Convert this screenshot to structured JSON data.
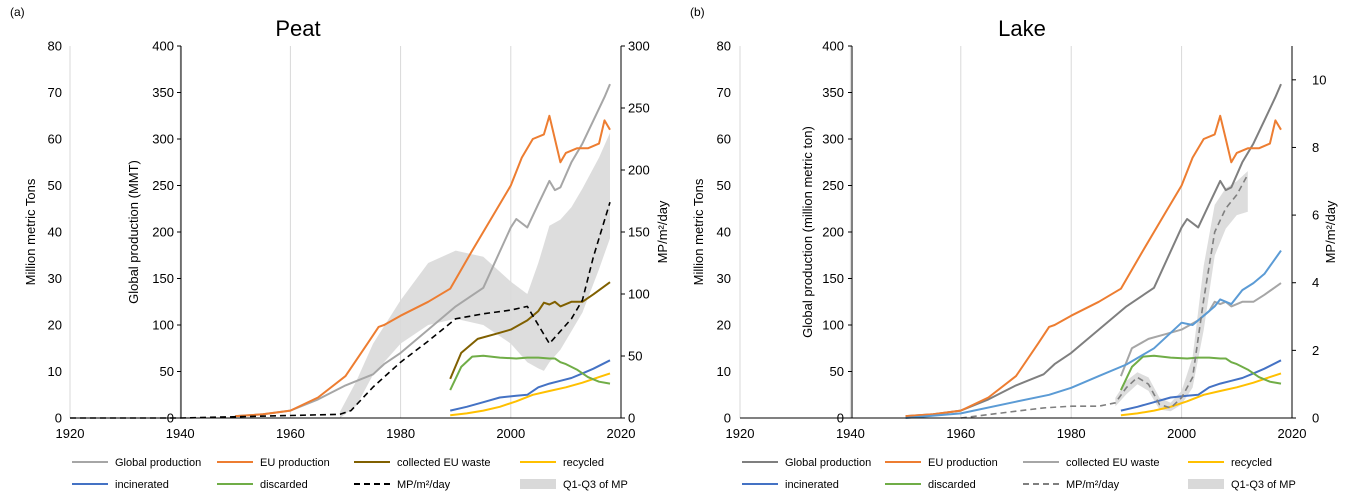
{
  "chart_data": [
    {
      "type": "line",
      "panel_label": "(a)",
      "title": "Peat",
      "xlabel": "",
      "ylabel_outer": "Million metric Tons",
      "ylabel_inner": "Global production (MMT)",
      "ylabel_right": "MP/m²/day",
      "xlim": [
        1920,
        2020
      ],
      "x_ticks": [
        "1920",
        "1940",
        "1960",
        "1980",
        "2000",
        "2020"
      ],
      "ylim_outer": [
        0,
        80
      ],
      "y_ticks_outer": [
        "0",
        "10",
        "20",
        "30",
        "40",
        "50",
        "60",
        "70",
        "80"
      ],
      "ylim_inner": [
        0,
        400
      ],
      "y_ticks_inner": [
        "0",
        "50",
        "100",
        "150",
        "200",
        "250",
        "300",
        "350",
        "400"
      ],
      "ylim_right": [
        0,
        300
      ],
      "y_ticks_right": [
        "0",
        "50",
        "100",
        "150",
        "200",
        "250",
        "300"
      ],
      "grid": "vertical",
      "legend": {
        "rows": [
          [
            "Global production",
            "EU production",
            "collected EU waste",
            "recycled"
          ],
          [
            "incinerated",
            "discarded",
            "MP/m²/day",
            "Q1-Q3 of MP"
          ]
        ]
      },
      "series": [
        {
          "name": "Global production",
          "color": "#A6A6A6",
          "axis": "inner",
          "style": "solid",
          "x": [
            1950,
            1955,
            1960,
            1965,
            1970,
            1975,
            1977,
            1980,
            1985,
            1990,
            1995,
            2000,
            2001,
            2003,
            2005,
            2007,
            2008,
            2009,
            2011,
            2013,
            2015,
            2017,
            2018
          ],
          "values": [
            2,
            4,
            8,
            20,
            35,
            47,
            58,
            70,
            95,
            120,
            140,
            205,
            214,
            205,
            230,
            255,
            245,
            248,
            275,
            295,
            320,
            345,
            359
          ]
        },
        {
          "name": "EU production",
          "color": "#ED7D31",
          "axis": "inner",
          "style": "solid",
          "x": [
            1950,
            1955,
            1960,
            1965,
            1970,
            1974,
            1976,
            1977,
            1980,
            1985,
            1989,
            1993,
            1997,
            2000,
            2002,
            2004,
            2006,
            2007,
            2008,
            2009,
            2010,
            2012,
            2014,
            2016,
            2017,
            2018
          ],
          "values": [
            2,
            4,
            8,
            22,
            45,
            80,
            98,
            100,
            110,
            125,
            139,
            180,
            220,
            250,
            280,
            300,
            305,
            325,
            300,
            275,
            285,
            290,
            290,
            295,
            320,
            310
          ]
        },
        {
          "name": "collected EU waste",
          "color": "#806000",
          "axis": "inner",
          "style": "solid",
          "x": [
            1989,
            1991,
            1994,
            1997,
            2000,
            2003,
            2005,
            2006,
            2007,
            2008,
            2009,
            2011,
            2013,
            2015,
            2018
          ],
          "values": [
            42,
            70,
            85,
            90,
            95,
            105,
            115,
            124,
            122,
            125,
            120,
            125,
            125,
            133,
            146
          ]
        },
        {
          "name": "recycled",
          "color": "#FFC000",
          "axis": "inner",
          "style": "solid",
          "x": [
            1989,
            1992,
            1995,
            1998,
            2001,
            2004,
            2007,
            2010,
            2013,
            2016,
            2018
          ],
          "values": [
            3,
            5,
            8,
            12,
            18,
            25,
            29,
            33,
            38,
            44,
            48
          ]
        },
        {
          "name": "incinerated",
          "color": "#4472C4",
          "axis": "inner",
          "style": "solid",
          "x": [
            1989,
            1992,
            1995,
            1998,
            2001,
            2003,
            2005,
            2007,
            2009,
            2011,
            2013,
            2015,
            2018
          ],
          "values": [
            8,
            12,
            17,
            22,
            24,
            25,
            33,
            37,
            40,
            43,
            48,
            53,
            62
          ]
        },
        {
          "name": "discarded",
          "color": "#70AD47",
          "axis": "inner",
          "style": "solid",
          "x": [
            1989,
            1991,
            1993,
            1995,
            1998,
            2001,
            2003,
            2005,
            2007,
            2008,
            2009,
            2010,
            2012,
            2014,
            2016,
            2018
          ],
          "values": [
            30,
            55,
            66,
            67,
            65,
            64,
            65,
            65,
            64,
            64,
            60,
            58,
            52,
            44,
            39,
            37
          ]
        },
        {
          "name": "MP/m²/day",
          "color": "#000000",
          "axis": "right",
          "style": "dashed",
          "x": [
            1920,
            1940,
            1960,
            1969,
            1971,
            1975,
            1980,
            1985,
            1990,
            1995,
            2000,
            2003,
            2005,
            2007,
            2009,
            2011,
            2013,
            2015,
            2018
          ],
          "values": [
            0,
            0,
            2,
            3,
            6,
            25,
            45,
            62,
            80,
            84,
            87,
            90,
            75,
            60,
            70,
            80,
            95,
            130,
            174
          ]
        }
      ],
      "band": {
        "name": "Q1-Q3 of MP",
        "color": "#D9D9D9",
        "axis": "right",
        "x": [
          1969,
          1972,
          1975,
          1980,
          1985,
          1990,
          1995,
          2000,
          2003,
          2005,
          2006,
          2007,
          2009,
          2011,
          2013,
          2016,
          2018
        ],
        "upper": [
          5,
          30,
          60,
          95,
          125,
          135,
          130,
          110,
          100,
          125,
          140,
          155,
          160,
          170,
          185,
          210,
          230
        ],
        "lower": [
          0,
          10,
          35,
          60,
          75,
          80,
          75,
          60,
          45,
          40,
          38,
          45,
          55,
          70,
          85,
          120,
          145
        ]
      }
    },
    {
      "type": "line",
      "panel_label": "(b)",
      "title": "Lake",
      "xlabel": "",
      "ylabel_outer": "Million metric Tons",
      "ylabel_inner": "Global production (million metric ton)",
      "ylabel_right": "MP/m²/day",
      "xlim": [
        1920,
        2020
      ],
      "x_ticks": [
        "1920",
        "1940",
        "1960",
        "1980",
        "2000",
        "2020"
      ],
      "ylim_outer": [
        0,
        80
      ],
      "y_ticks_outer": [
        "0",
        "10",
        "20",
        "30",
        "40",
        "50",
        "60",
        "70",
        "80"
      ],
      "ylim_inner": [
        0,
        400
      ],
      "y_ticks_inner": [
        "0",
        "50",
        "100",
        "150",
        "200",
        "250",
        "300",
        "350",
        "400"
      ],
      "ylim_right": [
        0,
        11
      ],
      "y_ticks_right": [
        "0",
        "2",
        "4",
        "6",
        "8",
        "10"
      ],
      "grid": "vertical",
      "legend": {
        "rows": [
          [
            "Global production",
            "EU production",
            "collected EU waste",
            "recycled"
          ],
          [
            "incinerated",
            "discarded",
            "MP/m²/day",
            "Q1-Q3 of MP"
          ]
        ]
      },
      "series": [
        {
          "name": "Global production",
          "color": "#7F7F7F",
          "axis": "inner",
          "style": "solid",
          "x": [
            1950,
            1955,
            1960,
            1965,
            1970,
            1975,
            1977,
            1980,
            1985,
            1990,
            1995,
            2000,
            2001,
            2003,
            2005,
            2007,
            2008,
            2009,
            2011,
            2013,
            2015,
            2017,
            2018
          ],
          "values": [
            2,
            4,
            8,
            20,
            35,
            47,
            58,
            70,
            95,
            120,
            140,
            205,
            214,
            205,
            230,
            255,
            245,
            248,
            275,
            295,
            320,
            345,
            359
          ]
        },
        {
          "name": "EU production",
          "color": "#ED7D31",
          "axis": "inner",
          "style": "solid",
          "x": [
            1950,
            1955,
            1960,
            1965,
            1970,
            1974,
            1976,
            1977,
            1980,
            1985,
            1989,
            1993,
            1997,
            2000,
            2002,
            2004,
            2006,
            2007,
            2008,
            2009,
            2010,
            2012,
            2014,
            2016,
            2017,
            2018
          ],
          "values": [
            2,
            4,
            8,
            22,
            45,
            80,
            98,
            100,
            110,
            125,
            139,
            180,
            220,
            250,
            280,
            300,
            305,
            325,
            300,
            275,
            285,
            290,
            290,
            295,
            320,
            310
          ]
        },
        {
          "name": "collected EU waste",
          "color": "#A6A6A6",
          "axis": "outer",
          "style": "solid",
          "x": [
            1989,
            1991,
            1994,
            1997,
            2000,
            2003,
            2005,
            2006,
            2007,
            2008,
            2009,
            2011,
            2013,
            2015,
            2018
          ],
          "values": [
            9,
            15,
            17,
            18,
            19,
            21,
            23,
            25,
            24.5,
            25,
            24,
            25,
            25,
            26.5,
            29
          ]
        },
        {
          "name": "recycled",
          "color": "#FFC000",
          "axis": "inner",
          "style": "solid",
          "x": [
            1989,
            1992,
            1995,
            1998,
            2001,
            2004,
            2007,
            2010,
            2013,
            2016,
            2018
          ],
          "values": [
            3,
            5,
            8,
            12,
            18,
            25,
            29,
            33,
            38,
            44,
            48
          ]
        },
        {
          "name": "incinerated",
          "color": "#4472C4",
          "axis": "inner",
          "style": "solid",
          "x": [
            1989,
            1992,
            1995,
            1998,
            2001,
            2003,
            2005,
            2007,
            2009,
            2011,
            2013,
            2015,
            2018
          ],
          "values": [
            8,
            12,
            17,
            22,
            24,
            25,
            33,
            37,
            40,
            43,
            48,
            53,
            62
          ]
        },
        {
          "name": "discarded",
          "color": "#70AD47",
          "axis": "inner",
          "style": "solid",
          "x": [
            1989,
            1991,
            1993,
            1995,
            1998,
            2001,
            2003,
            2005,
            2007,
            2008,
            2009,
            2010,
            2012,
            2014,
            2016,
            2018
          ],
          "values": [
            30,
            55,
            66,
            67,
            65,
            64,
            65,
            65,
            64,
            64,
            60,
            58,
            52,
            44,
            39,
            37
          ]
        },
        {
          "name": "",
          "color": "#5B9BD5",
          "axis": "outer",
          "style": "solid",
          "x": [
            1950,
            1960,
            1970,
            1976,
            1980,
            1985,
            1990,
            1995,
            2000,
            2002,
            2004,
            2006,
            2007,
            2009,
            2011,
            2013,
            2015,
            2018
          ],
          "values": [
            0,
            1,
            3.5,
            5,
            6.5,
            9,
            11.5,
            15,
            20.5,
            20,
            22,
            24,
            25.5,
            24.5,
            27.5,
            29,
            31,
            36
          ]
        },
        {
          "name": "MP/m²/day",
          "color": "#7F7F7F",
          "axis": "right",
          "style": "dashed",
          "x": [
            1960,
            1965,
            1970,
            1975,
            1980,
            1985,
            1988,
            1990,
            1992,
            1994,
            1996,
            1998,
            2000,
            2002,
            2004,
            2006,
            2008,
            2010,
            2012
          ],
          "values": [
            0,
            0.1,
            0.2,
            0.3,
            0.35,
            0.35,
            0.45,
            0.9,
            1.2,
            1.0,
            0.4,
            0.3,
            0.6,
            1.2,
            3.5,
            5.5,
            6.2,
            6.6,
            7.2
          ]
        }
      ],
      "band": {
        "name": "Q1-Q3 of MP",
        "color": "#D9D9D9",
        "axis": "right",
        "x": [
          1988,
          1990,
          1992,
          1994,
          1996,
          1998,
          2000,
          2002,
          2004,
          2006,
          2008,
          2010,
          2012
        ],
        "upper": [
          0.6,
          1.1,
          1.35,
          1.2,
          0.6,
          0.45,
          0.8,
          1.8,
          4.5,
          6.3,
          6.8,
          7.0,
          7.3
        ],
        "lower": [
          0.35,
          0.7,
          1.0,
          0.8,
          0.25,
          0.2,
          0.4,
          0.9,
          2.6,
          4.8,
          5.6,
          6.0,
          6.1
        ]
      }
    }
  ]
}
